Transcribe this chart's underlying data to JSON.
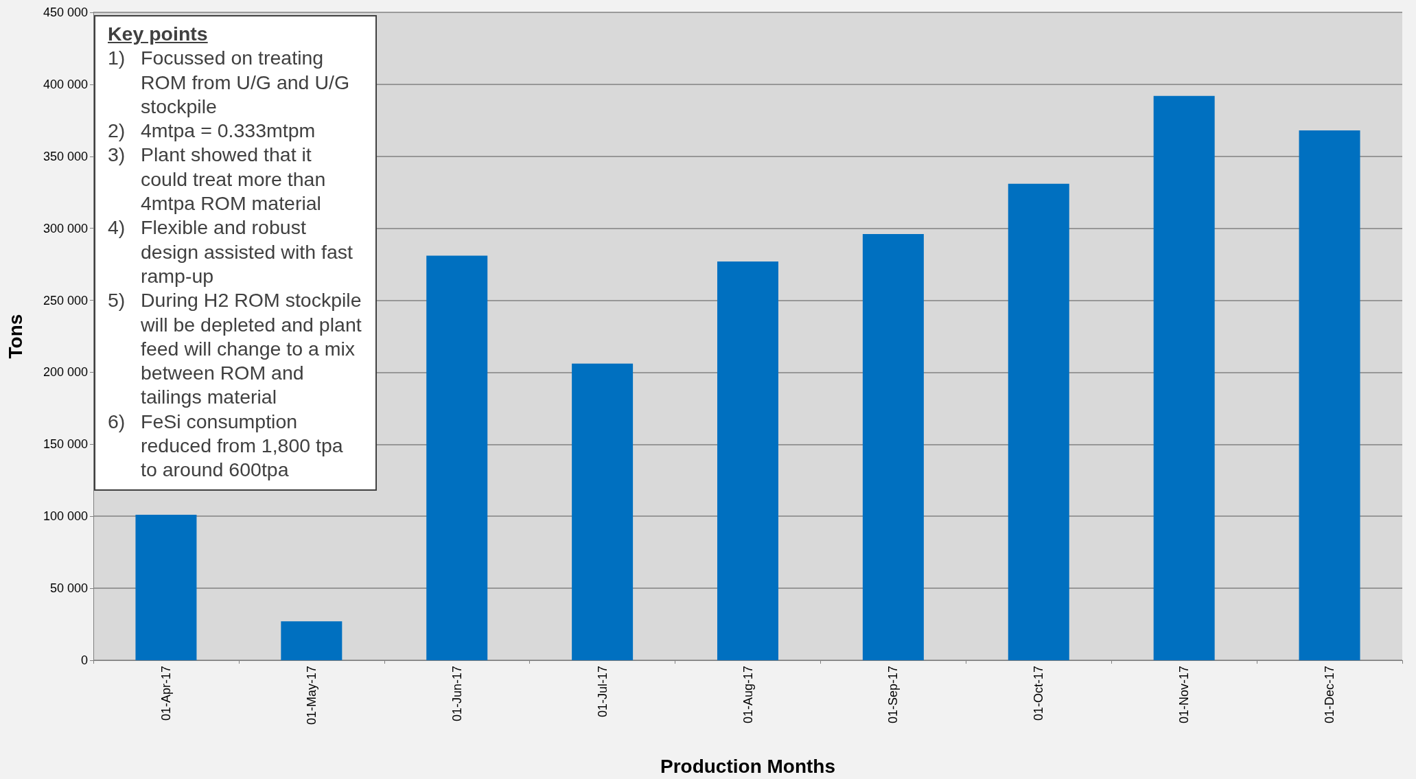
{
  "chart_data": {
    "type": "bar",
    "xlabel": "Production Months",
    "ylabel": "Tons",
    "categories": [
      "01-Apr-17",
      "01-May-17",
      "01-Jun-17",
      "01-Jul-17",
      "01-Aug-17",
      "01-Sep-17",
      "01-Oct-17",
      "01-Nov-17",
      "01-Dec-17"
    ],
    "values": [
      101000,
      27000,
      281000,
      206000,
      277000,
      296000,
      331000,
      392000,
      368000
    ],
    "color": "#0070c0",
    "ylim": [
      0,
      450000
    ],
    "yticks": [
      {
        "value": 0,
        "label": "0"
      },
      {
        "value": 50000,
        "label": "50 000"
      },
      {
        "value": 100000,
        "label": "100 000"
      },
      {
        "value": 150000,
        "label": "150 000"
      },
      {
        "value": 200000,
        "label": "200 000"
      },
      {
        "value": 250000,
        "label": "250 000"
      },
      {
        "value": 300000,
        "label": "300 000"
      },
      {
        "value": 350000,
        "label": "350 000"
      },
      {
        "value": 400000,
        "label": "400 000"
      },
      {
        "value": 450000,
        "label": "450 000"
      }
    ],
    "grid": "y",
    "annotations": [
      "Key points",
      "1)\tFocussed on treating ROM from U/G and U/G stockpile",
      "2)\t4mtpa = 0.333mtpm",
      "3)\tPlant showed that it could treat more than 4mtpa ROM material",
      "4)\tFlexible and robust design assisted with fast ramp-up",
      "5)\tDuring H2 ROM stockpile will be depleted and plant feed will change to a mix between ROM and tailings material",
      "6)\tFeSi consumption reduced from 1,800 tpa to around 600tpa"
    ]
  }
}
